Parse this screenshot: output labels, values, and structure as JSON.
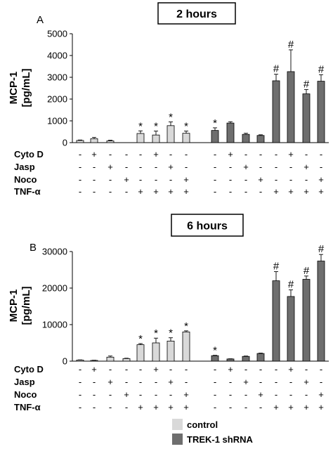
{
  "chart_data": [
    {
      "type": "bar",
      "panel_label": "A",
      "title": "2 hours",
      "ylabel_line1": "MCP-1",
      "ylabel_line2": "[pg/mL]",
      "ylim": [
        0,
        5000
      ],
      "yticks": [
        0,
        1000,
        2000,
        3000,
        4000,
        5000
      ],
      "treatment_rows": [
        "Cyto D",
        "Jasp",
        "Noco",
        "TNF-α"
      ],
      "series": [
        {
          "name": "control",
          "values": [
            100,
            180,
            80,
            0,
            420,
            350,
            780,
            430
          ],
          "errors": [
            20,
            60,
            30,
            0,
            120,
            180,
            170,
            100
          ],
          "marks": [
            "",
            "",
            "",
            "",
            "*",
            "*",
            "*",
            "*"
          ]
        },
        {
          "name": "TREK-1 shRNA",
          "values": [
            560,
            900,
            380,
            330,
            2840,
            3260,
            2240,
            2820
          ],
          "errors": [
            120,
            60,
            50,
            30,
            300,
            1000,
            200,
            300
          ],
          "marks": [
            "*",
            "",
            "",
            "",
            "#",
            "#",
            "#",
            "#"
          ]
        }
      ],
      "treatments": [
        [
          "-",
          "+",
          "-",
          "-",
          "-",
          "+",
          "-",
          "-"
        ],
        [
          "-",
          "-",
          "+",
          "-",
          "-",
          "-",
          "+",
          "-"
        ],
        [
          "-",
          "-",
          "-",
          "+",
          "-",
          "-",
          "-",
          "+"
        ],
        [
          "-",
          "-",
          "-",
          "-",
          "+",
          "+",
          "+",
          "+"
        ]
      ]
    },
    {
      "type": "bar",
      "panel_label": "B",
      "title": "6 hours",
      "ylabel_line1": "MCP-1",
      "ylabel_line2": "[pg/mL]",
      "ylim": [
        0,
        30000
      ],
      "yticks": [
        0,
        10000,
        20000,
        30000
      ],
      "treatment_rows": [
        "Cyto D",
        "Jasp",
        "Noco",
        "TNF-α"
      ],
      "series": [
        {
          "name": "control",
          "values": [
            300,
            200,
            1100,
            700,
            4500,
            5000,
            5500,
            8000
          ],
          "errors": [
            50,
            50,
            300,
            100,
            300,
            1300,
            900,
            300
          ],
          "marks": [
            "",
            "",
            "",
            "",
            "*",
            "*",
            "*",
            "*"
          ]
        },
        {
          "name": "TREK-1 shRNA",
          "values": [
            1500,
            600,
            1300,
            2100,
            22000,
            17700,
            22400,
            27400
          ],
          "errors": [
            100,
            50,
            100,
            100,
            2500,
            1800,
            900,
            1800
          ],
          "marks": [
            "*",
            "",
            "",
            "",
            "#",
            "#",
            "#",
            "#"
          ]
        }
      ],
      "treatments": [
        [
          "-",
          "+",
          "-",
          "-",
          "-",
          "+",
          "-",
          "-"
        ],
        [
          "-",
          "-",
          "+",
          "-",
          "-",
          "-",
          "+",
          "-"
        ],
        [
          "-",
          "-",
          "-",
          "+",
          "-",
          "-",
          "-",
          "+"
        ],
        [
          "-",
          "-",
          "-",
          "-",
          "+",
          "+",
          "+",
          "+"
        ]
      ]
    }
  ],
  "legend": [
    {
      "name": "control",
      "color": "#d9d9d9"
    },
    {
      "name": "TREK-1 shRNA",
      "color": "#6e6e6e"
    }
  ],
  "colors": {
    "control": "#d9d9d9",
    "trek": "#6e6e6e",
    "stroke": "#000000"
  }
}
